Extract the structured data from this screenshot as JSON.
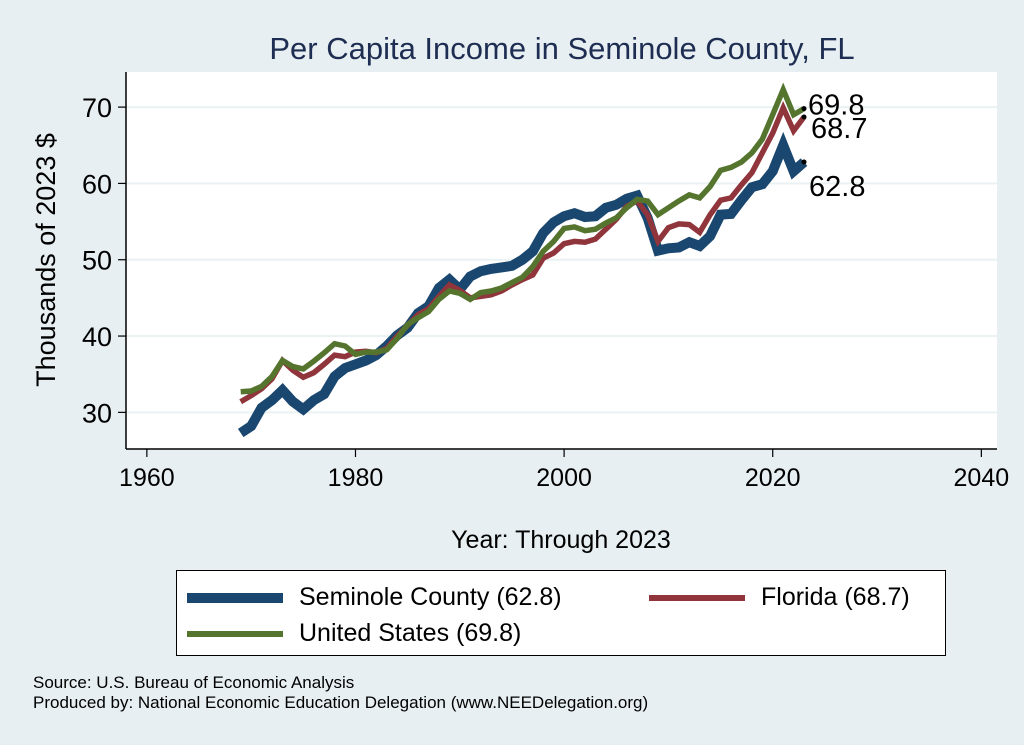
{
  "chart_data": {
    "type": "line",
    "title": "Per Capita Income in Seminole County, FL",
    "xlabel": "Year: Through 2023",
    "ylabel": "Thousands of 2023 $",
    "xlim": [
      1958,
      2041.5
    ],
    "ylim": [
      25.2,
      74.6
    ],
    "xticks": [
      1960,
      1980,
      2000,
      2020,
      2040
    ],
    "yticks": [
      30,
      40,
      50,
      60,
      70
    ],
    "grid": true,
    "legend_position": "bottom",
    "x": [
      1969,
      1970,
      1971,
      1972,
      1973,
      1974,
      1975,
      1976,
      1977,
      1978,
      1979,
      1980,
      1981,
      1982,
      1983,
      1984,
      1985,
      1986,
      1987,
      1988,
      1989,
      1990,
      1991,
      1992,
      1993,
      1994,
      1995,
      1996,
      1997,
      1998,
      1999,
      2000,
      2001,
      2002,
      2003,
      2004,
      2005,
      2006,
      2007,
      2008,
      2009,
      2010,
      2011,
      2012,
      2013,
      2014,
      2015,
      2016,
      2017,
      2018,
      2019,
      2020,
      2021,
      2022,
      2023
    ],
    "series": [
      {
        "name": "Seminole County",
        "legend": "Seminole County (62.8)",
        "color": "#1a476f",
        "end_label": "62.8",
        "values": [
          27.3,
          28.2,
          30.6,
          31.6,
          32.9,
          31.4,
          30.4,
          31.6,
          32.4,
          34.7,
          35.8,
          36.3,
          36.8,
          37.5,
          38.7,
          40.1,
          41.1,
          43.0,
          43.9,
          46.3,
          47.4,
          46.1,
          47.8,
          48.5,
          48.8,
          49.0,
          49.2,
          50.0,
          51.1,
          53.5,
          54.9,
          55.7,
          56.1,
          55.6,
          55.7,
          56.8,
          57.2,
          58.0,
          58.4,
          55.5,
          51.2,
          51.5,
          51.6,
          52.3,
          51.8,
          53.1,
          55.9,
          56.0,
          57.8,
          59.5,
          59.9,
          61.6,
          65.0,
          61.6,
          62.8
        ]
      },
      {
        "name": "Florida",
        "legend": "Florida (68.7)",
        "color": "#90353b",
        "end_label": "68.7",
        "values": [
          31.4,
          32.2,
          33.1,
          34.4,
          36.8,
          35.5,
          34.6,
          35.2,
          36.3,
          37.5,
          37.3,
          37.9,
          38.0,
          37.8,
          38.4,
          40.0,
          41.4,
          42.8,
          43.6,
          45.2,
          46.7,
          46.0,
          45.0,
          45.2,
          45.4,
          45.9,
          46.7,
          47.4,
          48.0,
          50.2,
          50.9,
          52.1,
          52.4,
          52.3,
          52.7,
          54.0,
          55.3,
          57.0,
          57.7,
          55.9,
          52.4,
          54.2,
          54.7,
          54.6,
          53.6,
          55.9,
          57.8,
          58.1,
          59.8,
          61.4,
          64.0,
          66.6,
          69.9,
          66.9,
          68.7
        ]
      },
      {
        "name": "United States",
        "legend": "United States (69.8)",
        "color": "#55752f",
        "end_label": "69.8",
        "values": [
          32.7,
          32.8,
          33.4,
          34.7,
          36.8,
          36.0,
          35.7,
          36.7,
          37.8,
          39.0,
          38.7,
          37.6,
          37.9,
          37.9,
          38.2,
          39.7,
          41.5,
          42.4,
          43.2,
          44.8,
          45.9,
          45.6,
          44.8,
          45.7,
          45.9,
          46.3,
          47.0,
          47.7,
          49.1,
          51.1,
          52.4,
          54.1,
          54.3,
          53.8,
          54.0,
          54.8,
          55.5,
          56.8,
          57.9,
          57.7,
          55.9,
          56.8,
          57.7,
          58.5,
          58.1,
          59.6,
          61.7,
          62.1,
          62.8,
          64.0,
          65.8,
          69.0,
          72.3,
          69.0,
          69.8
        ]
      }
    ]
  },
  "legend": {
    "items": [
      {
        "label": "Seminole County (62.8)",
        "color": "#1a476f"
      },
      {
        "label": "Florida (68.7)",
        "color": "#90353b"
      },
      {
        "label": "United States (69.8)",
        "color": "#55752f"
      }
    ]
  },
  "footer": {
    "source": "Source: U.S. Bureau of Economic Analysis",
    "produced_by": "Produced by: National Economic Education Delegation (www.NEEDelegation.org)"
  },
  "colors": {
    "background": "#e8eff2",
    "plot_background": "#ffffff",
    "grid": "#eaf2f3",
    "title": "#1e2d52"
  }
}
